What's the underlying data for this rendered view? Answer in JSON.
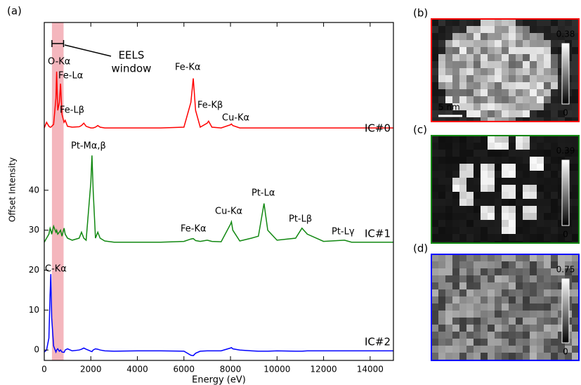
{
  "chart_data": {
    "type": "line",
    "panel_label": "(a)",
    "xlabel": "Energy (eV)",
    "ylabel": "Offset Intensity",
    "xlim": [
      0,
      15000
    ],
    "ylim": [
      -2.6,
      82
    ],
    "xticks": [
      0,
      2000,
      4000,
      6000,
      8000,
      10000,
      12000,
      14000
    ],
    "yticks": [
      0,
      10,
      20,
      30,
      40
    ],
    "eels_window": [
      330,
      830
    ],
    "eels_window_color": "#f4b6bd",
    "eels_window_text": [
      "EELS",
      "window"
    ],
    "x": [
      0,
      100,
      200,
      250,
      280,
      320,
      400,
      500,
      530,
      580,
      650,
      700,
      760,
      850,
      900,
      1000,
      1200,
      1500,
      1600,
      1700,
      1800,
      2000,
      2050,
      2100,
      2200,
      2300,
      2400,
      2600,
      3000,
      4000,
      5000,
      6000,
      6300,
      6400,
      6500,
      6700,
      7000,
      7060,
      7200,
      7600,
      8000,
      8040,
      8100,
      8400,
      8900,
      9200,
      9440,
      9600,
      10000,
      10800,
      11070,
      11300,
      12000,
      12900,
      13200,
      14000,
      15000
    ],
    "series": [
      {
        "name": "IC#0",
        "color": "#ff0000",
        "values": [
          55.6,
          57,
          56,
          55.8,
          55.8,
          56,
          56.5,
          63,
          69.7,
          60,
          62,
          66.7,
          59,
          57,
          57.5,
          56,
          55.8,
          55.9,
          56.2,
          56.8,
          56,
          55.6,
          55.6,
          55.6,
          55.8,
          56.2,
          55.8,
          55.6,
          55.6,
          55.6,
          55.6,
          55.8,
          62,
          68,
          60,
          55.8,
          56.8,
          57.3,
          55.8,
          55.6,
          56.4,
          56.6,
          56.2,
          55.6,
          55.6,
          55.6,
          55.6,
          55.6,
          55.6,
          55.6,
          55.6,
          55.6,
          55.6,
          55.6,
          55.6,
          55.6,
          55.6
        ],
        "peaks": [
          "O-Kα",
          "Fe-Lα",
          "Fe-Lβ",
          "Fe-Kα",
          "Fe-Kβ",
          "Cu-Kα"
        ]
      },
      {
        "name": "IC#1",
        "color": "#118811",
        "values": [
          27,
          28,
          29,
          30.5,
          30,
          29,
          31,
          29.5,
          30,
          29,
          29.5,
          30,
          28.5,
          30.5,
          29,
          28,
          27.5,
          28,
          29.5,
          28,
          27.5,
          42,
          48.7,
          40,
          28,
          29.5,
          28,
          27.3,
          27,
          27,
          27,
          27.2,
          27.8,
          27.9,
          27.4,
          27.2,
          27.5,
          27.4,
          27.2,
          27.1,
          31.5,
          32.1,
          30,
          27.3,
          28,
          28.5,
          36.7,
          30,
          27.5,
          28,
          30.5,
          29,
          27.2,
          27.5,
          27,
          27,
          27
        ],
        "peaks": [
          "Pt-Mα,β",
          "Fe-Kα",
          "Cu-Kα",
          "Pt-Lα",
          "Pt-Lβ",
          "Pt-Lγ"
        ]
      },
      {
        "name": "IC#2",
        "color": "#0000ff",
        "values": [
          -0.5,
          0,
          3,
          14,
          19,
          8,
          1,
          -0.5,
          0,
          0.3,
          -0.3,
          0,
          -0.5,
          -0.6,
          0,
          0.3,
          -0.2,
          0,
          0.2,
          0.5,
          0.2,
          -0.3,
          -0.4,
          0,
          0.3,
          0.2,
          0,
          -0.2,
          -0.3,
          -0.2,
          -0.2,
          -0.3,
          -1.3,
          -1.4,
          -0.8,
          -0.3,
          -0.2,
          -0.2,
          -0.2,
          -0.2,
          0.5,
          0.6,
          0.3,
          0,
          -0.2,
          -0.3,
          -0.3,
          -0.3,
          -0.2,
          -0.3,
          -0.3,
          -0.2,
          -0.2,
          -0.2,
          -0.2,
          -0.2,
          -0.2
        ],
        "peaks": [
          "C-Kα"
        ]
      }
    ]
  },
  "image_panels": [
    {
      "label": "(b)",
      "border": "#ff0000",
      "colorbar": [
        0.38,
        0
      ],
      "scale_bar": "5 nm"
    },
    {
      "label": "(c)",
      "border": "#118811",
      "colorbar": [
        0.39,
        0
      ]
    },
    {
      "label": "(d)",
      "border": "#0000ff",
      "colorbar": [
        0.75,
        0
      ]
    }
  ]
}
